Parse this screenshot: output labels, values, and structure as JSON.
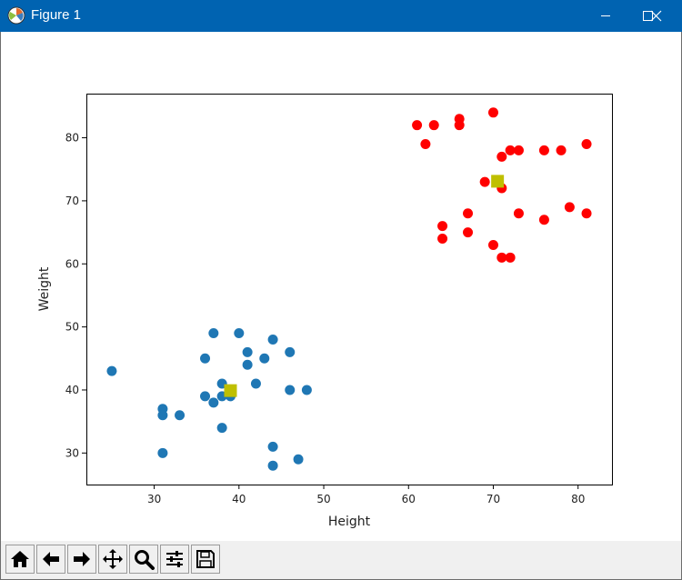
{
  "window": {
    "title": "Figure 1",
    "titlebar_color": "#0063b1",
    "controls": [
      "minimize-icon",
      "maximize-icon",
      "close-icon"
    ]
  },
  "toolbar": {
    "buttons": [
      "home-icon",
      "back-arrow-icon",
      "forward-arrow-icon",
      "pan-icon",
      "zoom-icon",
      "configure-subplots-icon",
      "save-icon"
    ]
  },
  "chart_data": {
    "type": "scatter",
    "xlabel": "Height",
    "ylabel": "Weight",
    "xlim": [
      22,
      84
    ],
    "ylim": [
      25,
      87
    ],
    "xticks": [
      30,
      40,
      50,
      60,
      70,
      80
    ],
    "yticks": [
      30,
      40,
      50,
      60,
      70,
      80
    ],
    "grid": false,
    "series": [
      {
        "color": "#1f77b4",
        "marker": "circle",
        "points": [
          [
            25,
            43
          ],
          [
            31,
            37
          ],
          [
            31,
            36
          ],
          [
            31,
            30
          ],
          [
            33,
            36
          ],
          [
            36,
            45
          ],
          [
            36,
            39
          ],
          [
            37,
            49
          ],
          [
            37,
            38
          ],
          [
            38,
            41
          ],
          [
            38,
            39
          ],
          [
            38,
            34
          ],
          [
            39,
            39
          ],
          [
            40,
            49
          ],
          [
            41,
            46
          ],
          [
            41,
            44
          ],
          [
            42,
            41
          ],
          [
            43,
            45
          ],
          [
            44,
            48
          ],
          [
            44,
            31
          ],
          [
            44,
            28
          ],
          [
            46,
            46
          ],
          [
            46,
            40
          ],
          [
            47,
            29
          ],
          [
            48,
            40
          ]
        ]
      },
      {
        "color": "#ff0000",
        "marker": "circle",
        "points": [
          [
            61,
            82
          ],
          [
            62,
            79
          ],
          [
            63,
            82
          ],
          [
            64,
            66
          ],
          [
            64,
            64
          ],
          [
            66,
            83
          ],
          [
            66,
            82
          ],
          [
            67,
            68
          ],
          [
            67,
            65
          ],
          [
            69,
            73
          ],
          [
            70,
            84
          ],
          [
            70,
            63
          ],
          [
            71,
            77
          ],
          [
            71,
            72
          ],
          [
            71,
            61
          ],
          [
            72,
            78
          ],
          [
            72,
            61
          ],
          [
            73,
            78
          ],
          [
            73,
            68
          ],
          [
            76,
            78
          ],
          [
            76,
            67
          ],
          [
            78,
            78
          ],
          [
            79,
            69
          ],
          [
            81,
            79
          ],
          [
            81,
            68
          ]
        ]
      },
      {
        "color": "#bfbf00",
        "marker": "square",
        "points": [
          [
            39,
            39.9
          ],
          [
            70.5,
            73.1
          ]
        ]
      }
    ]
  }
}
